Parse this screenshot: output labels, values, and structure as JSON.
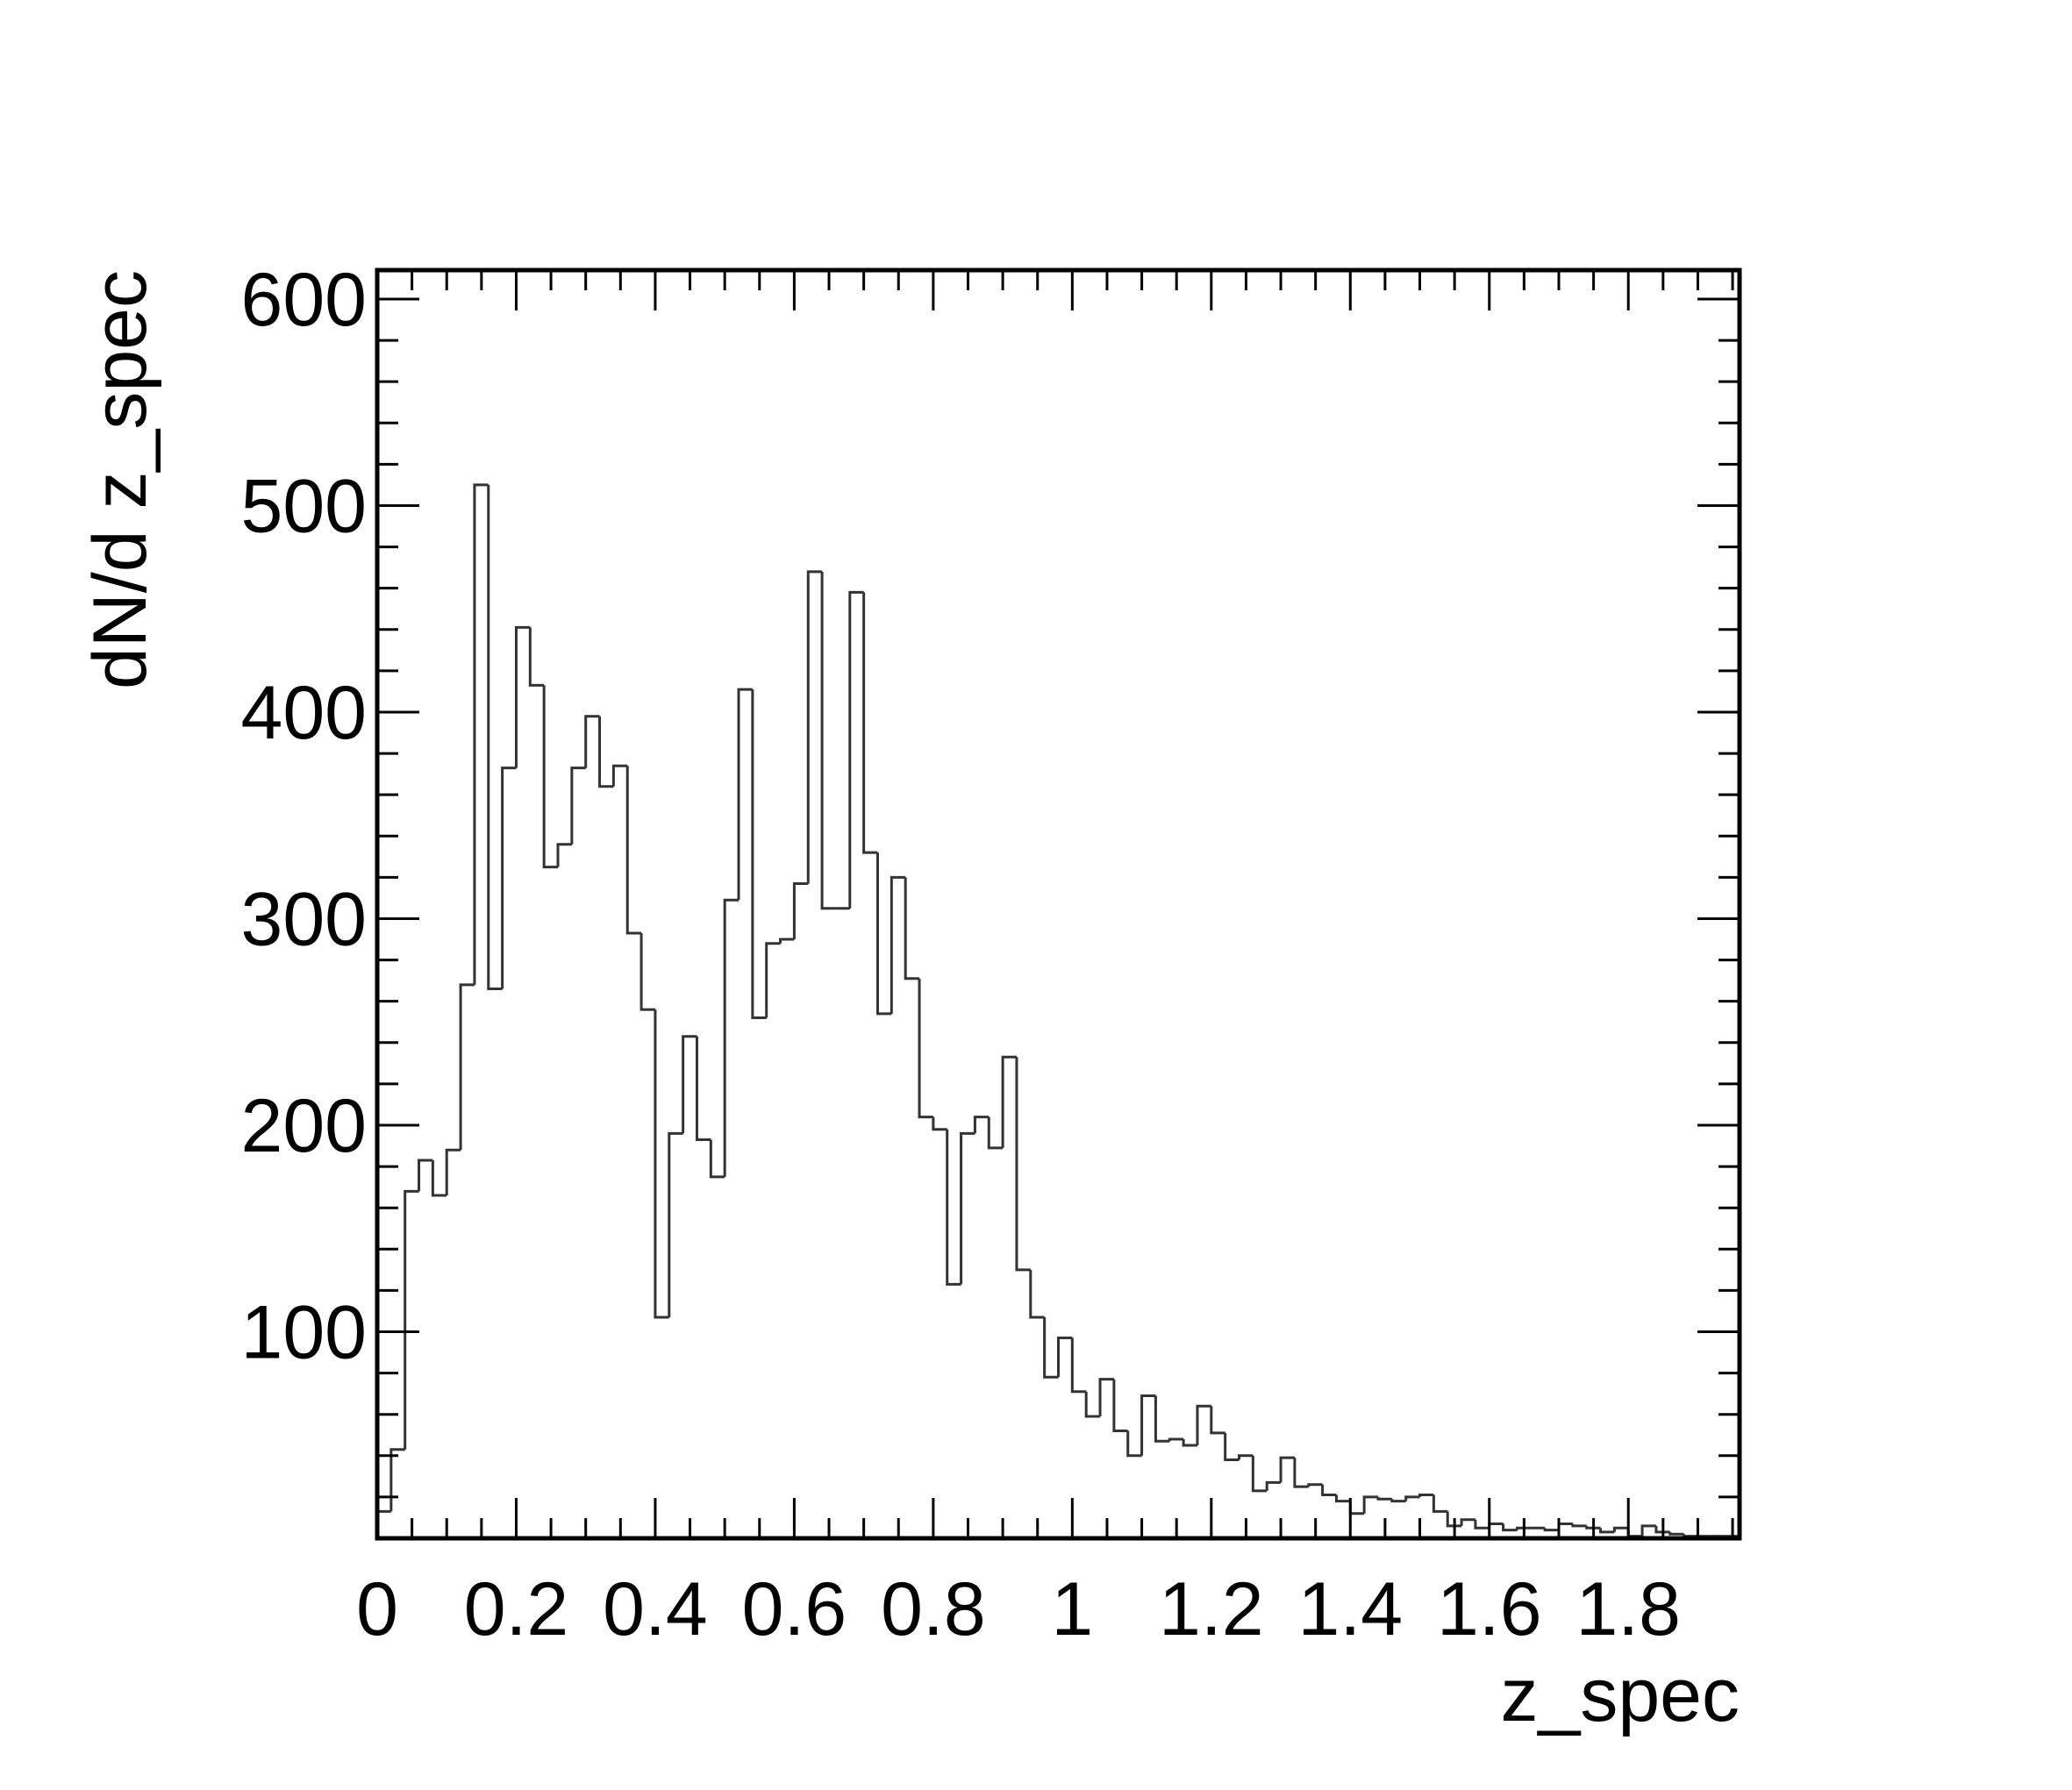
{
  "chart_data": {
    "type": "histogram",
    "title": "",
    "xlabel": "z_spec",
    "ylabel": "dN/d z_spec",
    "xlim": [
      0,
      1.96
    ],
    "ylim": [
      0,
      614
    ],
    "grid": false,
    "legend": "none",
    "line_color": "#333333",
    "bin_width": 0.02,
    "bin_start": 0,
    "values": [
      13,
      43,
      168,
      183,
      166,
      188,
      268,
      510,
      266,
      373,
      441,
      413,
      325,
      336,
      373,
      398,
      364,
      374,
      293,
      256,
      107,
      196,
      243,
      193,
      175,
      309,
      411,
      252,
      288,
      290,
      317,
      468,
      305,
      305,
      458,
      332,
      254,
      320,
      271,
      204,
      198,
      123,
      196,
      204,
      189,
      233,
      130,
      107,
      78,
      97,
      71,
      59,
      77,
      52,
      40,
      69,
      47,
      48,
      45,
      64,
      51,
      38,
      40,
      23,
      27,
      39,
      25,
      26,
      21,
      18,
      12,
      20,
      19,
      18,
      20,
      21,
      13,
      6,
      9,
      5,
      7,
      4,
      5,
      5,
      4,
      7,
      6,
      5,
      3,
      5,
      1,
      6,
      3,
      2,
      1,
      1,
      1,
      1
    ],
    "x_ticks": [
      {
        "value": 0,
        "label": "0"
      },
      {
        "value": 0.2,
        "label": "0.2"
      },
      {
        "value": 0.4,
        "label": "0.4"
      },
      {
        "value": 0.6,
        "label": "0.6"
      },
      {
        "value": 0.8,
        "label": "0.8"
      },
      {
        "value": 1.0,
        "label": "1"
      },
      {
        "value": 1.2,
        "label": "1.2"
      },
      {
        "value": 1.4,
        "label": "1.4"
      },
      {
        "value": 1.6,
        "label": "1.6"
      },
      {
        "value": 1.8,
        "label": "1.8"
      }
    ],
    "y_ticks": [
      {
        "value": 100,
        "label": "100"
      },
      {
        "value": 200,
        "label": "200"
      },
      {
        "value": 300,
        "label": "300"
      },
      {
        "value": 400,
        "label": "400"
      },
      {
        "value": 500,
        "label": "500"
      },
      {
        "value": 600,
        "label": "600"
      }
    ],
    "x_minor_step": 0.05,
    "y_minor_step": 20
  }
}
